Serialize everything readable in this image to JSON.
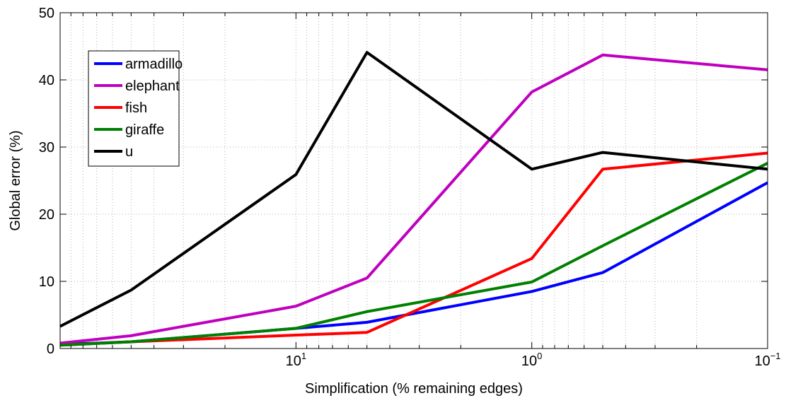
{
  "chart_data": {
    "type": "line",
    "title": "",
    "xlabel": "Simplification (% remaining edges)",
    "ylabel": "Global error (%)",
    "x_scale": "log",
    "x_reversed": true,
    "xlim": [
      100,
      0.1
    ],
    "ylim": [
      0,
      50
    ],
    "grid": true,
    "legend_position": "top-left",
    "x": [
      100,
      50,
      10,
      5,
      1,
      0.5,
      0.1
    ],
    "x_ticks": [
      {
        "value": 10,
        "base": "10",
        "exp": "1"
      },
      {
        "value": 1,
        "base": "10",
        "exp": "0"
      },
      {
        "value": 0.1,
        "base": "10",
        "exp": "−1"
      }
    ],
    "y_ticks": [
      "0",
      "10",
      "20",
      "30",
      "40",
      "50"
    ],
    "series": [
      {
        "name": "armadillo",
        "color": "#0000ff",
        "values": [
          0.6,
          1.0,
          3.0,
          3.9,
          8.5,
          11.3,
          24.7
        ]
      },
      {
        "name": "elephant",
        "color": "#bf00bf",
        "values": [
          0.8,
          1.9,
          6.3,
          10.5,
          38.2,
          43.7,
          41.5
        ]
      },
      {
        "name": "fish",
        "color": "#ff0000",
        "values": [
          0.5,
          1.0,
          2.0,
          2.4,
          13.4,
          26.7,
          29.1
        ]
      },
      {
        "name": "giraffe",
        "color": "#008000",
        "values": [
          0.5,
          1.0,
          3.0,
          5.5,
          9.9,
          15.3,
          27.6
        ]
      },
      {
        "name": "u",
        "color": "#000000",
        "values": [
          3.3,
          8.7,
          25.9,
          44.1,
          26.7,
          29.2,
          26.7
        ]
      }
    ]
  }
}
